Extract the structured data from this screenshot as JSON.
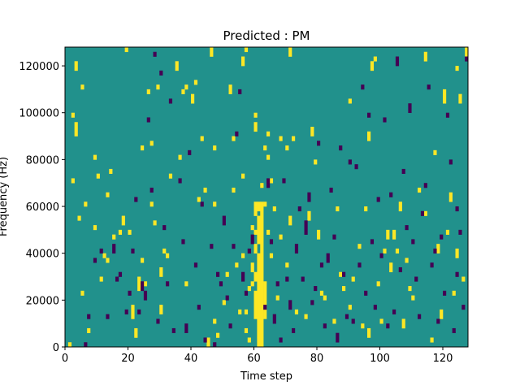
{
  "chart_data": {
    "type": "heatmap",
    "title": "Predicted : PM",
    "xlabel": "Time step",
    "ylabel": "Frequency (Hz)",
    "xlim": [
      0,
      128
    ],
    "ylim": [
      0,
      128000
    ],
    "xticks": [
      0,
      20,
      40,
      60,
      80,
      100,
      120
    ],
    "yticks": [
      0,
      20000,
      40000,
      60000,
      80000,
      100000,
      120000
    ],
    "xtick_labels": [
      "0",
      "20",
      "40",
      "60",
      "80",
      "100",
      "120"
    ],
    "ytick_labels": [
      "0",
      "20000",
      "40000",
      "60000",
      "80000",
      "100000",
      "120000"
    ],
    "colormap": "viridis",
    "colors": {
      "background": "#21918c",
      "high": "#fde725",
      "low": "#440154"
    },
    "grid": false,
    "background_value": 0,
    "cells": [
      [
        61,
        0,
        4000,
        1
      ],
      [
        62,
        0,
        4000,
        1
      ],
      [
        61,
        4000,
        12000,
        1
      ],
      [
        62,
        4000,
        12000,
        1
      ],
      [
        60,
        12000,
        24000,
        1
      ],
      [
        61,
        12000,
        32000,
        1
      ],
      [
        62,
        12000,
        32000,
        1
      ],
      [
        63,
        12000,
        28000,
        1
      ],
      [
        60,
        28000,
        32000,
        1
      ],
      [
        61,
        32000,
        40000,
        1
      ],
      [
        62,
        32000,
        44000,
        1
      ],
      [
        59,
        32000,
        36000,
        1
      ],
      [
        60,
        40000,
        44000,
        1
      ],
      [
        61,
        44000,
        56000,
        1
      ],
      [
        62,
        44000,
        62000,
        1
      ],
      [
        60,
        48000,
        50000,
        1
      ],
      [
        60,
        56000,
        60000,
        1
      ],
      [
        61,
        58000,
        62000,
        1
      ],
      [
        63,
        60000,
        62000,
        1
      ],
      [
        62,
        68000,
        70000,
        1
      ],
      [
        63,
        84000,
        86000,
        1
      ],
      [
        60,
        92000,
        96000,
        1
      ],
      [
        64,
        80000,
        82000,
        1
      ],
      [
        3,
        90000,
        96000,
        1
      ],
      [
        4,
        54000,
        56000,
        1
      ],
      [
        5,
        22000,
        24000,
        1
      ],
      [
        6,
        60000,
        62000,
        1
      ],
      [
        3,
        118000,
        122000,
        1
      ],
      [
        5,
        110000,
        112000,
        1
      ],
      [
        2,
        98000,
        100000,
        1
      ],
      [
        2,
        70000,
        72000,
        1
      ],
      [
        7,
        6000,
        8000,
        1
      ],
      [
        9,
        50000,
        52000,
        1
      ],
      [
        9,
        80000,
        82000,
        1
      ],
      [
        10,
        72000,
        74000,
        1
      ],
      [
        12,
        38000,
        40000,
        1
      ],
      [
        13,
        64000,
        66000,
        1
      ],
      [
        13,
        36000,
        38000,
        1
      ],
      [
        14,
        74000,
        76000,
        1
      ],
      [
        11,
        28000,
        30000,
        1
      ],
      [
        15,
        46000,
        48000,
        1
      ],
      [
        17,
        48000,
        50000,
        1
      ],
      [
        18,
        52000,
        56000,
        1
      ],
      [
        19,
        126000,
        128000,
        1
      ],
      [
        20,
        48000,
        50000,
        1
      ],
      [
        21,
        12000,
        18000,
        1
      ],
      [
        22,
        4000,
        8000,
        1
      ],
      [
        23,
        24000,
        30000,
        1
      ],
      [
        24,
        36000,
        38000,
        1
      ],
      [
        24,
        84000,
        86000,
        1
      ],
      [
        25,
        26000,
        28000,
        1
      ],
      [
        26,
        108000,
        110000,
        1
      ],
      [
        27,
        60000,
        62000,
        1
      ],
      [
        27,
        86000,
        88000,
        1
      ],
      [
        28,
        52000,
        54000,
        1
      ],
      [
        29,
        110000,
        112000,
        1
      ],
      [
        30,
        30000,
        34000,
        1
      ],
      [
        30,
        14000,
        18000,
        1
      ],
      [
        31,
        40000,
        42000,
        1
      ],
      [
        32,
        38000,
        40000,
        1
      ],
      [
        33,
        72000,
        74000,
        1
      ],
      [
        35,
        118000,
        122000,
        1
      ],
      [
        36,
        80000,
        82000,
        1
      ],
      [
        37,
        108000,
        110000,
        1
      ],
      [
        38,
        110000,
        112000,
        1
      ],
      [
        38,
        26000,
        28000,
        1
      ],
      [
        40,
        104000,
        108000,
        1
      ],
      [
        41,
        112000,
        114000,
        1
      ],
      [
        42,
        62000,
        64000,
        1
      ],
      [
        43,
        88000,
        90000,
        1
      ],
      [
        44,
        66000,
        68000,
        1
      ],
      [
        46,
        124000,
        128000,
        1
      ],
      [
        47,
        60000,
        62000,
        1
      ],
      [
        47,
        84000,
        86000,
        1
      ],
      [
        47,
        10000,
        12000,
        1
      ],
      [
        48,
        4000,
        6000,
        1
      ],
      [
        50,
        18000,
        20000,
        1
      ],
      [
        51,
        30000,
        32000,
        1
      ],
      [
        52,
        108000,
        112000,
        1
      ],
      [
        53,
        66000,
        68000,
        1
      ],
      [
        53,
        88000,
        90000,
        1
      ],
      [
        54,
        34000,
        36000,
        1
      ],
      [
        55,
        14000,
        16000,
        1
      ],
      [
        56,
        38000,
        40000,
        1
      ],
      [
        56,
        72000,
        74000,
        1
      ],
      [
        57,
        6000,
        8000,
        1
      ],
      [
        57,
        14000,
        16000,
        1
      ],
      [
        58,
        2000,
        4000,
        1
      ],
      [
        58,
        24000,
        26000,
        1
      ],
      [
        59,
        26000,
        28000,
        1
      ],
      [
        59,
        50000,
        52000,
        1
      ],
      [
        60,
        60000,
        62000,
        1
      ],
      [
        60,
        98000,
        100000,
        1
      ],
      [
        56,
        120000,
        124000,
        1
      ],
      [
        57,
        126000,
        128000,
        1
      ],
      [
        64,
        90000,
        92000,
        1
      ],
      [
        65,
        38000,
        40000,
        1
      ],
      [
        64,
        48000,
        50000,
        1
      ],
      [
        65,
        70000,
        72000,
        1
      ],
      [
        66,
        58000,
        60000,
        1
      ],
      [
        67,
        20000,
        22000,
        1
      ],
      [
        68,
        46000,
        48000,
        1
      ],
      [
        68,
        88000,
        90000,
        1
      ],
      [
        70,
        34000,
        36000,
        1
      ],
      [
        70,
        84000,
        86000,
        1
      ],
      [
        71,
        52000,
        56000,
        1
      ],
      [
        71,
        124000,
        128000,
        1
      ],
      [
        72,
        88000,
        90000,
        1
      ],
      [
        73,
        14000,
        16000,
        1
      ],
      [
        76,
        12000,
        14000,
        1
      ],
      [
        77,
        54000,
        58000,
        1
      ],
      [
        78,
        90000,
        94000,
        1
      ],
      [
        79,
        78000,
        80000,
        1
      ],
      [
        80,
        46000,
        50000,
        1
      ],
      [
        81,
        22000,
        24000,
        1
      ],
      [
        82,
        20000,
        22000,
        1
      ],
      [
        85,
        10000,
        12000,
        1
      ],
      [
        86,
        58000,
        60000,
        1
      ],
      [
        87,
        30000,
        32000,
        1
      ],
      [
        88,
        24000,
        26000,
        1
      ],
      [
        90,
        16000,
        18000,
        1
      ],
      [
        90,
        104000,
        106000,
        1
      ],
      [
        91,
        28000,
        30000,
        1
      ],
      [
        93,
        42000,
        44000,
        1
      ],
      [
        94,
        8000,
        10000,
        1
      ],
      [
        95,
        58000,
        60000,
        1
      ],
      [
        96,
        4000,
        8000,
        1
      ],
      [
        96,
        88000,
        92000,
        1
      ],
      [
        97,
        118000,
        122000,
        1
      ],
      [
        98,
        122000,
        124000,
        1
      ],
      [
        99,
        26000,
        28000,
        1
      ],
      [
        100,
        10000,
        12000,
        1
      ],
      [
        101,
        40000,
        42000,
        1
      ],
      [
        102,
        46000,
        50000,
        1
      ],
      [
        103,
        32000,
        36000,
        1
      ],
      [
        104,
        46000,
        48000,
        1
      ],
      [
        104,
        48000,
        50000,
        1
      ],
      [
        105,
        40000,
        42000,
        1
      ],
      [
        106,
        58000,
        62000,
        1
      ],
      [
        107,
        8000,
        12000,
        1
      ],
      [
        108,
        36000,
        38000,
        1
      ],
      [
        109,
        24000,
        26000,
        1
      ],
      [
        110,
        20000,
        22000,
        1
      ],
      [
        112,
        66000,
        68000,
        1
      ],
      [
        114,
        122000,
        126000,
        1
      ],
      [
        114,
        56000,
        58000,
        1
      ],
      [
        116,
        2000,
        4000,
        1
      ],
      [
        117,
        82000,
        84000,
        1
      ],
      [
        118,
        40000,
        44000,
        1
      ],
      [
        119,
        12000,
        16000,
        1
      ],
      [
        120,
        104000,
        110000,
        1
      ],
      [
        121,
        48000,
        50000,
        1
      ],
      [
        122,
        62000,
        66000,
        1
      ],
      [
        123,
        22000,
        24000,
        1
      ],
      [
        124,
        38000,
        42000,
        1
      ],
      [
        124,
        118000,
        120000,
        1
      ],
      [
        125,
        104000,
        108000,
        1
      ],
      [
        126,
        28000,
        30000,
        1
      ],
      [
        127,
        124000,
        128000,
        1
      ],
      [
        45,
        0,
        4000,
        1
      ],
      [
        1,
        0,
        2000,
        1
      ],
      [
        6,
        0,
        2000,
        -1
      ],
      [
        7,
        12000,
        14000,
        -1
      ],
      [
        9,
        36000,
        38000,
        -1
      ],
      [
        11,
        40000,
        42000,
        -1
      ],
      [
        13,
        12000,
        14000,
        -1
      ],
      [
        15,
        40000,
        44000,
        -1
      ],
      [
        16,
        28000,
        30000,
        -1
      ],
      [
        17,
        30000,
        32000,
        -1
      ],
      [
        19,
        14000,
        16000,
        -1
      ],
      [
        20,
        22000,
        24000,
        -1
      ],
      [
        21,
        40000,
        42000,
        -1
      ],
      [
        22,
        62000,
        64000,
        -1
      ],
      [
        23,
        14000,
        16000,
        -1
      ],
      [
        24,
        24000,
        28000,
        -1
      ],
      [
        25,
        20000,
        24000,
        -1
      ],
      [
        26,
        96000,
        98000,
        -1
      ],
      [
        27,
        66000,
        68000,
        -1
      ],
      [
        28,
        124000,
        126000,
        -1
      ],
      [
        29,
        10000,
        12000,
        -1
      ],
      [
        30,
        116000,
        118000,
        -1
      ],
      [
        31,
        50000,
        52000,
        -1
      ],
      [
        32,
        26000,
        28000,
        -1
      ],
      [
        33,
        104000,
        106000,
        -1
      ],
      [
        34,
        6000,
        8000,
        -1
      ],
      [
        36,
        70000,
        72000,
        -1
      ],
      [
        37,
        44000,
        46000,
        -1
      ],
      [
        38,
        6000,
        10000,
        -1
      ],
      [
        39,
        82000,
        84000,
        -1
      ],
      [
        41,
        34000,
        36000,
        -1
      ],
      [
        42,
        16000,
        18000,
        -1
      ],
      [
        43,
        60000,
        62000,
        -1
      ],
      [
        44,
        2000,
        4000,
        -1
      ],
      [
        46,
        42000,
        44000,
        -1
      ],
      [
        47,
        0,
        2000,
        -1
      ],
      [
        48,
        30000,
        32000,
        -1
      ],
      [
        49,
        26000,
        28000,
        -1
      ],
      [
        50,
        52000,
        56000,
        -1
      ],
      [
        51,
        20000,
        22000,
        -1
      ],
      [
        52,
        8000,
        10000,
        -1
      ],
      [
        53,
        42000,
        44000,
        -1
      ],
      [
        54,
        90000,
        92000,
        -1
      ],
      [
        55,
        108000,
        110000,
        -1
      ],
      [
        56,
        28000,
        32000,
        -1
      ],
      [
        57,
        22000,
        24000,
        -1
      ],
      [
        58,
        40000,
        42000,
        -1
      ],
      [
        59,
        44000,
        48000,
        -1
      ],
      [
        63,
        16000,
        18000,
        -1
      ],
      [
        64,
        68000,
        72000,
        -1
      ],
      [
        65,
        44000,
        46000,
        -1
      ],
      [
        66,
        10000,
        14000,
        -1
      ],
      [
        67,
        26000,
        28000,
        -1
      ],
      [
        68,
        2000,
        4000,
        -1
      ],
      [
        69,
        70000,
        72000,
        -1
      ],
      [
        70,
        28000,
        30000,
        -1
      ],
      [
        71,
        16000,
        20000,
        -1
      ],
      [
        72,
        6000,
        8000,
        -1
      ],
      [
        73,
        40000,
        44000,
        -1
      ],
      [
        74,
        58000,
        60000,
        -1
      ],
      [
        75,
        28000,
        30000,
        -1
      ],
      [
        76,
        48000,
        54000,
        -1
      ],
      [
        77,
        62000,
        66000,
        -1
      ],
      [
        78,
        18000,
        20000,
        -1
      ],
      [
        79,
        24000,
        26000,
        -1
      ],
      [
        80,
        86000,
        88000,
        -1
      ],
      [
        81,
        34000,
        36000,
        -1
      ],
      [
        82,
        8000,
        10000,
        -1
      ],
      [
        83,
        36000,
        40000,
        -1
      ],
      [
        84,
        66000,
        68000,
        -1
      ],
      [
        85,
        46000,
        48000,
        -1
      ],
      [
        86,
        2000,
        6000,
        -1
      ],
      [
        87,
        84000,
        86000,
        -1
      ],
      [
        88,
        30000,
        32000,
        -1
      ],
      [
        89,
        12000,
        14000,
        -1
      ],
      [
        90,
        78000,
        80000,
        -1
      ],
      [
        91,
        10000,
        12000,
        -1
      ],
      [
        92,
        76000,
        78000,
        -1
      ],
      [
        93,
        34000,
        36000,
        -1
      ],
      [
        94,
        110000,
        112000,
        -1
      ],
      [
        95,
        22000,
        24000,
        -1
      ],
      [
        96,
        98000,
        100000,
        -1
      ],
      [
        97,
        44000,
        46000,
        -1
      ],
      [
        98,
        16000,
        18000,
        -1
      ],
      [
        99,
        62000,
        64000,
        -1
      ],
      [
        100,
        38000,
        40000,
        -1
      ],
      [
        101,
        96000,
        98000,
        -1
      ],
      [
        102,
        8000,
        10000,
        -1
      ],
      [
        103,
        64000,
        66000,
        -1
      ],
      [
        104,
        14000,
        16000,
        -1
      ],
      [
        105,
        120000,
        124000,
        -1
      ],
      [
        106,
        32000,
        34000,
        -1
      ],
      [
        107,
        74000,
        76000,
        -1
      ],
      [
        108,
        50000,
        52000,
        -1
      ],
      [
        109,
        100000,
        104000,
        -1
      ],
      [
        110,
        44000,
        46000,
        -1
      ],
      [
        111,
        28000,
        30000,
        -1
      ],
      [
        112,
        12000,
        14000,
        -1
      ],
      [
        113,
        56000,
        58000,
        -1
      ],
      [
        114,
        68000,
        70000,
        -1
      ],
      [
        115,
        110000,
        112000,
        -1
      ],
      [
        116,
        34000,
        36000,
        -1
      ],
      [
        117,
        40000,
        42000,
        -1
      ],
      [
        118,
        10000,
        12000,
        -1
      ],
      [
        119,
        46000,
        48000,
        -1
      ],
      [
        120,
        22000,
        24000,
        -1
      ],
      [
        121,
        98000,
        100000,
        -1
      ],
      [
        122,
        78000,
        80000,
        -1
      ],
      [
        123,
        6000,
        8000,
        -1
      ],
      [
        124,
        30000,
        32000,
        -1
      ],
      [
        125,
        48000,
        50000,
        -1
      ],
      [
        126,
        16000,
        18000,
        -1
      ],
      [
        127,
        122000,
        124000,
        -1
      ],
      [
        124,
        58000,
        60000,
        -1
      ]
    ]
  }
}
